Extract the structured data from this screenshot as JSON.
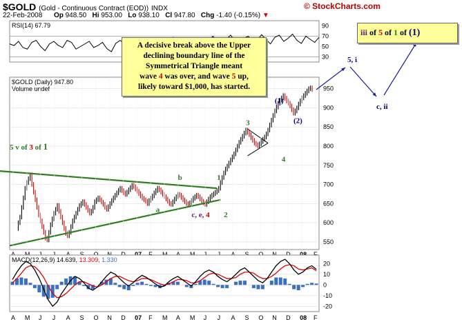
{
  "header": {
    "symbol": "$GOLD",
    "name": "(Gold - Continuous Contract (EOD))",
    "exchange": "INDX",
    "credit": "© StockCharts.com",
    "date": "22-Feb-2008",
    "open_label": "Op",
    "open": "948.50",
    "high_label": "Hi",
    "high": "953.00",
    "low_label": "Lo",
    "low": "938.10",
    "close_label": "Cl",
    "close": "947.80",
    "chg_label": "Chg",
    "chg": "-1.40 (-0.15%)"
  },
  "callout": {
    "line1": "A decisive break above the Upper",
    "line2": "declining boundary line of the",
    "line3": "Symmetrical Triangle meant",
    "line4_pre": "wave ",
    "line4_num": "4",
    "line4_post": " was over, and wave ",
    "line4_num2": "5",
    "line4_end": " up,",
    "line5": "likely toward $1,000, has started."
  },
  "wave_box": {
    "p1": "iii",
    "p2": " of ",
    "p3": "5",
    "p4": " of ",
    "p5": "1",
    "p6": " of ",
    "p7": "(1)"
  },
  "colors": {
    "price_up": "#000000",
    "price_down": "#d00000",
    "trend": "#2e7d1e",
    "rsi": "#000000",
    "macd_line": "#000000",
    "signal_line": "#e00000",
    "histogram": "#3a6fc4",
    "callout_bg": "#ffff99",
    "wave_blue": "#000080",
    "wave_green": "#2e7d1e",
    "wave_purple": "#6a1b6a",
    "wave_red": "#d00000"
  },
  "chart_data": [
    {
      "type": "line",
      "panel": "rsi",
      "title": "RSI(14)",
      "last_value": "67.79",
      "yticks": [
        30,
        50,
        70,
        90
      ],
      "ylim": [
        20,
        100
      ],
      "reference_lines": [
        30,
        70
      ],
      "values": [
        55,
        52,
        60,
        48,
        45,
        58,
        62,
        50,
        42,
        55,
        60,
        52,
        48,
        62,
        58,
        45,
        50,
        55,
        60,
        48,
        52,
        58,
        46,
        40,
        56,
        62,
        55,
        50,
        60,
        64,
        52,
        47,
        58,
        66,
        55,
        49,
        60,
        68,
        60,
        52,
        48,
        58,
        65,
        56,
        50,
        62,
        70,
        58,
        52,
        64,
        72,
        60,
        54,
        66,
        70,
        58,
        62,
        73,
        64,
        55,
        68,
        72,
        60,
        66,
        74,
        62,
        56,
        70,
        64,
        58,
        67.79
      ]
    },
    {
      "type": "line",
      "panel": "price",
      "series_label": "$GOLD (Daily) 947.80",
      "volume_label": "Volume undef",
      "x_axis": [
        "A",
        "M",
        "J",
        "J",
        "A",
        "S",
        "O",
        "N",
        "D",
        "07",
        "F",
        "M",
        "A",
        "M",
        "J",
        "J",
        "A",
        "S",
        "O",
        "N",
        "D",
        "08",
        "F"
      ],
      "yticks": [
        550,
        600,
        650,
        700,
        750,
        800,
        850,
        900,
        950
      ],
      "ylim": [
        530,
        980
      ],
      "values": [
        585,
        600,
        615,
        640,
        665,
        690,
        705,
        715,
        725,
        700,
        680,
        660,
        640,
        620,
        605,
        590,
        575,
        560,
        555,
        575,
        595,
        610,
        625,
        635,
        645,
        630,
        615,
        600,
        585,
        572,
        566,
        575,
        590,
        605,
        615,
        625,
        635,
        645,
        650,
        655,
        648,
        640,
        632,
        625,
        630,
        640,
        655,
        660,
        665,
        660,
        654,
        648,
        640,
        635,
        642,
        650,
        658,
        665,
        672,
        678,
        685,
        690,
        684,
        678,
        674,
        680,
        686,
        692,
        698,
        694,
        688,
        682,
        676,
        670,
        664,
        660,
        656,
        650,
        658,
        664,
        670,
        678,
        684,
        690,
        686,
        680,
        674,
        668,
        662,
        656,
        650,
        648,
        655,
        662,
        668,
        674,
        672,
        666,
        660,
        655,
        650,
        648,
        652,
        658,
        664,
        668,
        672,
        668,
        662,
        656,
        652,
        648,
        655,
        662,
        668,
        672,
        676,
        680,
        684,
        690,
        705,
        718,
        730,
        740,
        748,
        756,
        764,
        772,
        780,
        790,
        800,
        810,
        818,
        826,
        834,
        842,
        836,
        830,
        822,
        815,
        808,
        804,
        800,
        806,
        812,
        818,
        824,
        832,
        842,
        855,
        868,
        880,
        892,
        902,
        912,
        920,
        926,
        932,
        925,
        918,
        912,
        905,
        895,
        886,
        892,
        900,
        910,
        918,
        926,
        932,
        938,
        944,
        950,
        952,
        947.8
      ],
      "annotations": [
        {
          "text": "(1)",
          "color": "#000080"
        },
        {
          "text": "(2)",
          "color": "#000080"
        },
        {
          "text": "3",
          "color": "#2e7d1e"
        },
        {
          "text": "4",
          "color": "#2e7d1e"
        },
        {
          "text": "1",
          "color": "#2e7d1e"
        },
        {
          "text": "2",
          "color": "#2e7d1e"
        },
        {
          "text": "b",
          "color": "#2e7d1e"
        },
        {
          "text": "a",
          "color": "#2e7d1e"
        },
        {
          "text": "c, e, 4",
          "color": "#d00000"
        },
        {
          "text": "5, i",
          "color": "#000080"
        },
        {
          "text": "c, ii",
          "color": "#000080"
        },
        {
          "text": "5 v of 3 of 1",
          "color": "#2e7d1e"
        }
      ]
    },
    {
      "type": "line",
      "panel": "macd",
      "title": "MACD(12,26,9)",
      "macd_value": "14.639",
      "signal_value": "13.309",
      "hist_value": "1.330",
      "yticks": [
        -20,
        -10,
        0,
        10,
        20
      ],
      "ylim": [
        -25,
        28
      ],
      "x_axis": [
        "A",
        "M",
        "J",
        "J",
        "A",
        "S",
        "O",
        "N",
        "D",
        "07",
        "F",
        "M",
        "A",
        "M",
        "J",
        "J",
        "A",
        "S",
        "O",
        "N",
        "D",
        "08",
        "F"
      ],
      "series": [
        {
          "name": "MACD",
          "values": [
            5,
            12,
            18,
            22,
            20,
            14,
            6,
            -4,
            -14,
            -20,
            -16,
            -8,
            -2,
            4,
            8,
            6,
            2,
            -3,
            -5,
            -2,
            3,
            8,
            12,
            10,
            6,
            2,
            -1,
            2,
            6,
            9,
            7,
            4,
            1,
            -2,
            -1,
            3,
            6,
            8,
            5,
            2,
            -1,
            3,
            8,
            12,
            14,
            12,
            8,
            5,
            3,
            6,
            10,
            14,
            16,
            12,
            8,
            4,
            2,
            6,
            12,
            18,
            22,
            24,
            20,
            14,
            10,
            12,
            16,
            18,
            14.6
          ]
        },
        {
          "name": "Signal",
          "values": [
            2,
            6,
            11,
            16,
            18,
            17,
            13,
            7,
            -1,
            -8,
            -12,
            -11,
            -8,
            -4,
            0,
            3,
            3,
            1,
            -1,
            -2,
            0,
            3,
            6,
            8,
            8,
            6,
            4,
            3,
            4,
            6,
            6,
            5,
            3,
            1,
            0,
            1,
            3,
            5,
            5,
            4,
            2,
            2,
            4,
            7,
            10,
            11,
            10,
            8,
            6,
            6,
            7,
            10,
            12,
            12,
            11,
            8,
            6,
            6,
            8,
            11,
            15,
            18,
            19,
            18,
            15,
            14,
            15,
            16,
            13.3
          ]
        }
      ]
    }
  ]
}
